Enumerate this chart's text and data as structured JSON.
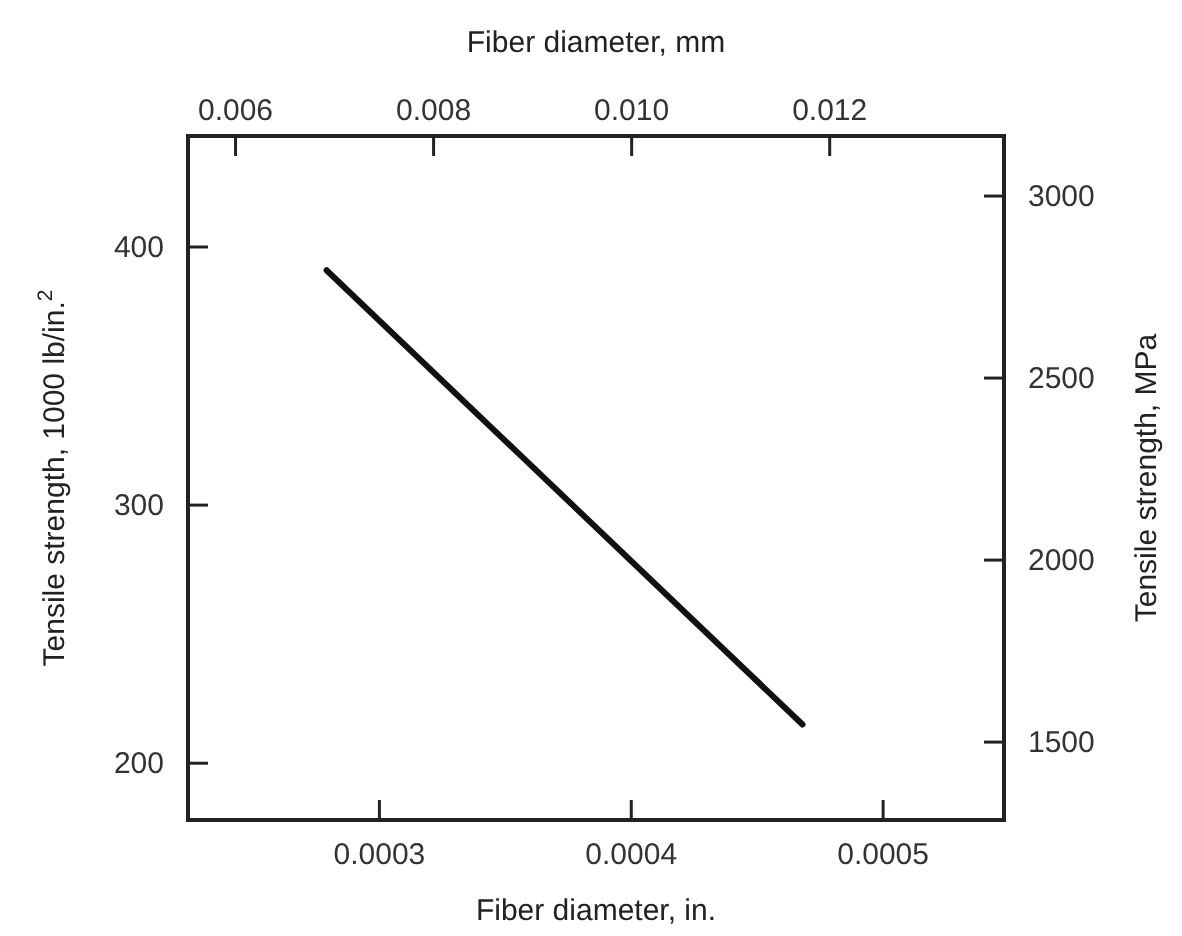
{
  "chart_data": {
    "type": "line",
    "xlabel": "Fiber diameter, in.",
    "x2label": "Fiber diameter, mm",
    "ylabel": "Tensile strength, 1000 lb/in.$^{2}$",
    "y2label": "Tensile strength, MPa",
    "xlim": [
      0.000224,
      0.000548
    ],
    "xticks": [
      0.0003,
      0.0004,
      0.0005
    ],
    "x2lim": [
      0.00552,
      0.01376
    ],
    "x2ticks": [
      {
        "value": 0.006,
        "label": "0.006"
      },
      {
        "value": 0.008,
        "label": "0.008"
      },
      {
        "value": 0.01,
        "label": "0.010"
      },
      {
        "value": 0.012,
        "label": "0.012"
      }
    ],
    "ylim": [
      178,
      443
    ],
    "yticks": [
      200,
      300,
      400
    ],
    "y2lim": [
      1286,
      3165
    ],
    "y2ticks": [
      1500,
      2000,
      2500,
      3000
    ],
    "series": [
      {
        "color": "#111111",
        "x": [
          0.000279,
          0.000468
        ],
        "values": [
          391,
          215
        ]
      }
    ],
    "grid": false,
    "marker": "none",
    "line_style": "solid"
  }
}
